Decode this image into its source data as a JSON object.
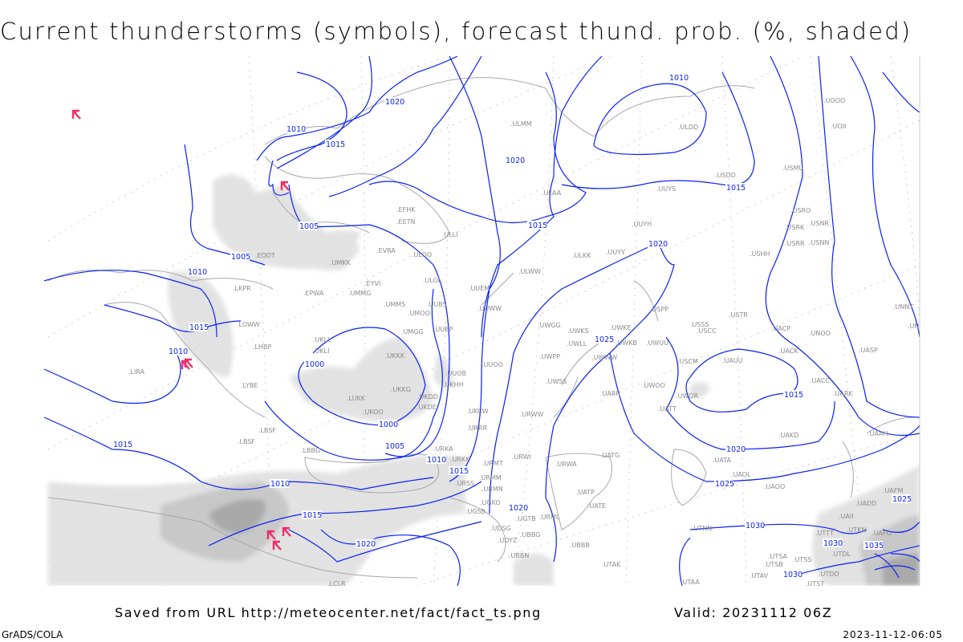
{
  "title": "Current thunderstorms (symbols), forecast thund. prob. (%, shaded)",
  "footer": {
    "saved_from": "Saved from URL http://meteocenter.net/fact/fact_ts.png",
    "valid": "Valid: 20231112 06Z",
    "software": "GrADS/COLA",
    "generated": "2023-11-12-06:05"
  },
  "colors": {
    "isobar": "#0a1ff5",
    "thunderstorm_symbol": "#f0306a",
    "shading_light": "#e2e2e2",
    "shading_mid": "#c8c8c8",
    "shading_dark": "#a9a9a9",
    "coastline": "#a8a8a8",
    "station": "#8a8a8a"
  },
  "legend_items": {
    "symbols": "current thunderstorms",
    "shaded": "forecast thunderstorm probability (%)"
  },
  "isobar_labels": [
    "1010",
    "1020",
    "1010",
    "1015",
    "1020",
    "1015",
    "1015",
    "1005",
    "1005",
    "1010",
    "1020",
    "1015",
    "1010",
    "1000",
    "1025",
    "1015",
    "1000",
    "1005",
    "1010",
    "1020",
    "1025",
    "1015",
    "1010",
    "1015",
    "1020",
    "1015",
    "1020",
    "1030",
    "1030",
    "1030",
    "1035",
    "1025"
  ],
  "stations": [
    "EDDT",
    "LKPR",
    "EPWA",
    "UMMG",
    "EYVI",
    "UMMS",
    "UMOO",
    "UUBS",
    "UMGG",
    "UUBP",
    "LOWW",
    "UMKK",
    "EVRA",
    "ULOO",
    "ULOL",
    "UUEM",
    "EFHK",
    "EETN",
    "ULLI",
    "UUWW",
    "UKLL",
    "LHBP",
    "UKLI",
    "UKKK",
    "UUOB",
    "LYBE",
    "UKKG",
    "UKDD",
    "UKHH",
    "LUKK",
    "UKOO",
    "UKDE",
    "UKCW",
    "URRR",
    "LBSF",
    "LBBG",
    "URKA",
    "URKK",
    "URMT",
    "URSS",
    "URMM",
    "URMN",
    "UGKO",
    "UGSB",
    "UGTB",
    "UDSG",
    "UBBG",
    "UDYZ",
    "UBBN",
    "UBBB",
    "LCLR",
    "ULMM",
    "ULDD",
    "ULAA",
    "UUYS",
    "USDD",
    "USMU",
    "UOII",
    "UOOO",
    "USRO",
    "USRK",
    "USNR",
    "USRR",
    "USNN",
    "USHH",
    "UUYH",
    "ULKK",
    "UUYY",
    "ULWW",
    "USPP",
    "USTR",
    "USSS",
    "UWGG",
    "UWKS",
    "UWKE",
    "UWLL",
    "UWKB",
    "UWUU",
    "USCC",
    "UACP",
    "UNOO",
    "UNNT",
    "UNBB",
    "UWPP",
    "UWWW",
    "UUOO",
    "USCM",
    "UAUU",
    "UACK",
    "UASP",
    "UWSS",
    "UWOO",
    "UACC",
    "UARR",
    "UWOR",
    "UARK",
    "UATT",
    "URWW",
    "UAKD",
    "UAAH",
    "URWI",
    "URWA",
    "UATG",
    "UATA",
    "UAOL",
    "UAOO",
    "UATP",
    "UATE",
    "URML",
    "UTNN",
    "UAFM",
    "UADD",
    "UAII",
    "UTKN",
    "UAFO",
    "UTTT",
    "UTDL",
    "UTSA",
    "UTSB",
    "UTSS",
    "UTAV",
    "UTDD",
    "UTAK",
    "UTAA",
    "UTST",
    "LIRA",
    "LBSF"
  ],
  "thunderstorm_count": 7
}
